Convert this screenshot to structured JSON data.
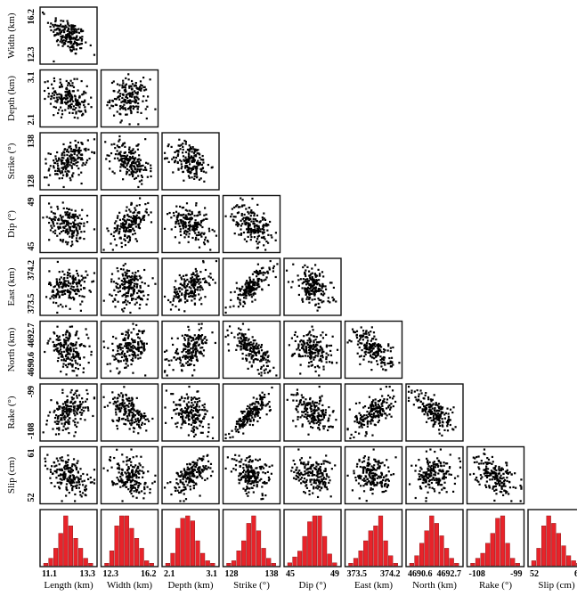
{
  "chart_data": {
    "type": "scatter",
    "parameters": [
      {
        "label": "Length (km)",
        "range": [
          11.1,
          13.3
        ],
        "ticks": [
          "11.1",
          "13.3"
        ]
      },
      {
        "label": "Width (km)",
        "range": [
          12.3,
          16.2
        ],
        "ticks": [
          "12.3",
          "16.2"
        ]
      },
      {
        "label": "Depth (km)",
        "range": [
          2.1,
          3.1
        ],
        "ticks": [
          "2.1",
          "3.1"
        ]
      },
      {
        "label": "Strike (°)",
        "range": [
          128,
          138
        ],
        "ticks": [
          "128",
          "138"
        ]
      },
      {
        "label": "Dip (°)",
        "range": [
          45,
          49
        ],
        "ticks": [
          "45",
          "49"
        ]
      },
      {
        "label": "East (km)",
        "range": [
          373.5,
          374.2
        ],
        "ticks": [
          "373.5",
          "374.2"
        ]
      },
      {
        "label": "North (km)",
        "range": [
          4690.6,
          4692.7
        ],
        "ticks": [
          "4690.6",
          "4692.7"
        ]
      },
      {
        "label": "Rake (°)",
        "range": [
          -108,
          -99
        ],
        "ticks": [
          "-108",
          "-99"
        ]
      },
      {
        "label": "Slip (cm)",
        "range": [
          52,
          61
        ],
        "ticks": [
          "52",
          "61"
        ]
      }
    ],
    "points_per_panel": 180,
    "correlations": [
      {
        "row": "Width (km)",
        "col": "Length (km)",
        "r": -0.5
      },
      {
        "row": "Depth (km)",
        "col": "Length (km)",
        "r": -0.3
      },
      {
        "row": "Depth (km)",
        "col": "Width (km)",
        "r": 0.0
      },
      {
        "row": "Strike (°)",
        "col": "Length (km)",
        "r": 0.35
      },
      {
        "row": "Strike (°)",
        "col": "Width (km)",
        "r": -0.45
      },
      {
        "row": "Strike (°)",
        "col": "Depth (km)",
        "r": -0.2
      },
      {
        "row": "Dip (°)",
        "col": "Length (km)",
        "r": -0.3
      },
      {
        "row": "Dip (°)",
        "col": "Width (km)",
        "r": 0.55
      },
      {
        "row": "Dip (°)",
        "col": "Depth (km)",
        "r": -0.4
      },
      {
        "row": "Dip (°)",
        "col": "Strike (°)",
        "r": -0.35
      },
      {
        "row": "East (km)",
        "col": "Length (km)",
        "r": 0.1
      },
      {
        "row": "East (km)",
        "col": "Width (km)",
        "r": -0.1
      },
      {
        "row": "East (km)",
        "col": "Depth (km)",
        "r": 0.45
      },
      {
        "row": "East (km)",
        "col": "Strike (°)",
        "r": 0.75
      },
      {
        "row": "East (km)",
        "col": "Dip (°)",
        "r": -0.35
      },
      {
        "row": "North (km)",
        "col": "Length (km)",
        "r": -0.3
      },
      {
        "row": "North (km)",
        "col": "Width (km)",
        "r": 0.25
      },
      {
        "row": "North (km)",
        "col": "Depth (km)",
        "r": 0.45
      },
      {
        "row": "North (km)",
        "col": "Strike (°)",
        "r": -0.7
      },
      {
        "row": "North (km)",
        "col": "Dip (°)",
        "r": -0.1
      },
      {
        "row": "North (km)",
        "col": "East (km)",
        "r": -0.55
      },
      {
        "row": "Rake (°)",
        "col": "Length (km)",
        "r": 0.35
      },
      {
        "row": "Rake (°)",
        "col": "Width (km)",
        "r": -0.45
      },
      {
        "row": "Rake (°)",
        "col": "Depth (km)",
        "r": -0.3
      },
      {
        "row": "Rake (°)",
        "col": "Strike (°)",
        "r": 0.85
      },
      {
        "row": "Rake (°)",
        "col": "Dip (°)",
        "r": -0.4
      },
      {
        "row": "Rake (°)",
        "col": "East (km)",
        "r": 0.55
      },
      {
        "row": "Rake (°)",
        "col": "North (km)",
        "r": -0.6
      },
      {
        "row": "Slip (cm)",
        "col": "Length (km)",
        "r": -0.4
      },
      {
        "row": "Slip (cm)",
        "col": "Width (km)",
        "r": -0.25
      },
      {
        "row": "Slip (cm)",
        "col": "Depth (km)",
        "r": 0.6
      },
      {
        "row": "Slip (cm)",
        "col": "Strike (°)",
        "r": -0.3
      },
      {
        "row": "Slip (cm)",
        "col": "Dip (°)",
        "r": -0.2
      },
      {
        "row": "Slip (cm)",
        "col": "East (km)",
        "r": -0.1
      },
      {
        "row": "Slip (cm)",
        "col": "North (km)",
        "r": 0.3
      },
      {
        "row": "Slip (cm)",
        "col": "Rake (°)",
        "r": -0.35
      }
    ],
    "histograms": [
      {
        "param": "Length (km)",
        "counts": [
          1,
          3,
          7,
          13,
          20,
          16,
          11,
          7,
          3,
          1
        ]
      },
      {
        "param": "Width (km)",
        "counts": [
          1,
          6,
          16,
          20,
          20,
          15,
          11,
          7,
          2,
          1
        ]
      },
      {
        "param": "Depth (km)",
        "counts": [
          1,
          5,
          15,
          19,
          20,
          18,
          10,
          5,
          2,
          1
        ]
      },
      {
        "param": "Strike (°)",
        "counts": [
          1,
          2,
          6,
          10,
          17,
          20,
          14,
          7,
          3,
          1
        ]
      },
      {
        "param": "Dip (°)",
        "counts": [
          1,
          3,
          5,
          10,
          15,
          17,
          17,
          10,
          4,
          1
        ]
      },
      {
        "param": "East (km)",
        "counts": [
          1,
          3,
          6,
          10,
          14,
          16,
          20,
          10,
          4,
          1
        ]
      },
      {
        "param": "North (km)",
        "counts": [
          1,
          4,
          9,
          14,
          20,
          17,
          12,
          7,
          3,
          1
        ]
      },
      {
        "param": "Rake (°)",
        "counts": [
          1,
          3,
          5,
          9,
          13,
          19,
          20,
          9,
          3,
          1
        ]
      },
      {
        "param": "Slip (cm)",
        "counts": [
          2,
          7,
          16,
          20,
          17,
          13,
          8,
          4,
          2,
          1
        ]
      }
    ],
    "histogram_color": "#e8232a",
    "marker_color": "#000000",
    "grid": false
  }
}
